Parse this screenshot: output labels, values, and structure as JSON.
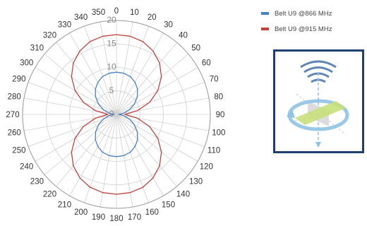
{
  "chart_data": {
    "type": "polar-line",
    "angle_labels": [
      "0",
      "10",
      "20",
      "30",
      "40",
      "50",
      "60",
      "70",
      "80",
      "90",
      "100",
      "110",
      "120",
      "130",
      "140",
      "150",
      "160",
      "170",
      "180",
      "190",
      "200",
      "210",
      "220",
      "230",
      "240",
      "250",
      "260",
      "270",
      "280",
      "290",
      "300",
      "310",
      "320",
      "330",
      "340",
      "350"
    ],
    "radial_ticks": [
      "0",
      "5",
      "10",
      "15",
      "20"
    ],
    "rlim": [
      0,
      20
    ],
    "grid": true,
    "legend_position": "top-right",
    "series": [
      {
        "name": "Belt U9 @866 MHz",
        "color": "#4a7fc1",
        "values": [
          9,
          8.9,
          8.6,
          7.9,
          7,
          5.8,
          4.4,
          3,
          1.6,
          0.5,
          1.6,
          3,
          4.4,
          5.8,
          7,
          7.9,
          8.6,
          8.9,
          9,
          8.9,
          8.6,
          7.9,
          7,
          5.8,
          4.4,
          3,
          1.6,
          0.5,
          1.6,
          3,
          4.4,
          5.8,
          7,
          7.9,
          8.6,
          8.9
        ]
      },
      {
        "name": "Belt U9 @915 MHz",
        "color": "#c0433f",
        "values": [
          17,
          16.9,
          16.5,
          15.6,
          14.3,
          12.5,
          10.2,
          7.5,
          4.5,
          1.8,
          4.5,
          7.5,
          10.2,
          12.5,
          14.3,
          15.6,
          16.5,
          16.9,
          17,
          16.9,
          16.5,
          15.6,
          14.3,
          12.5,
          10.2,
          7.5,
          4.5,
          1.8,
          4.5,
          7.5,
          10.2,
          12.5,
          14.3,
          15.6,
          16.5,
          16.9
        ]
      }
    ]
  },
  "legend": {
    "items": [
      {
        "label": "Belt U9 @866 MHz",
        "color": "#4a7fc1"
      },
      {
        "label": "Belt U9 @915 MHz",
        "color": "#c0433f"
      }
    ]
  },
  "icon_card": {
    "icon": "antenna-orientation-icon",
    "border_color": "#1f3f6e"
  }
}
